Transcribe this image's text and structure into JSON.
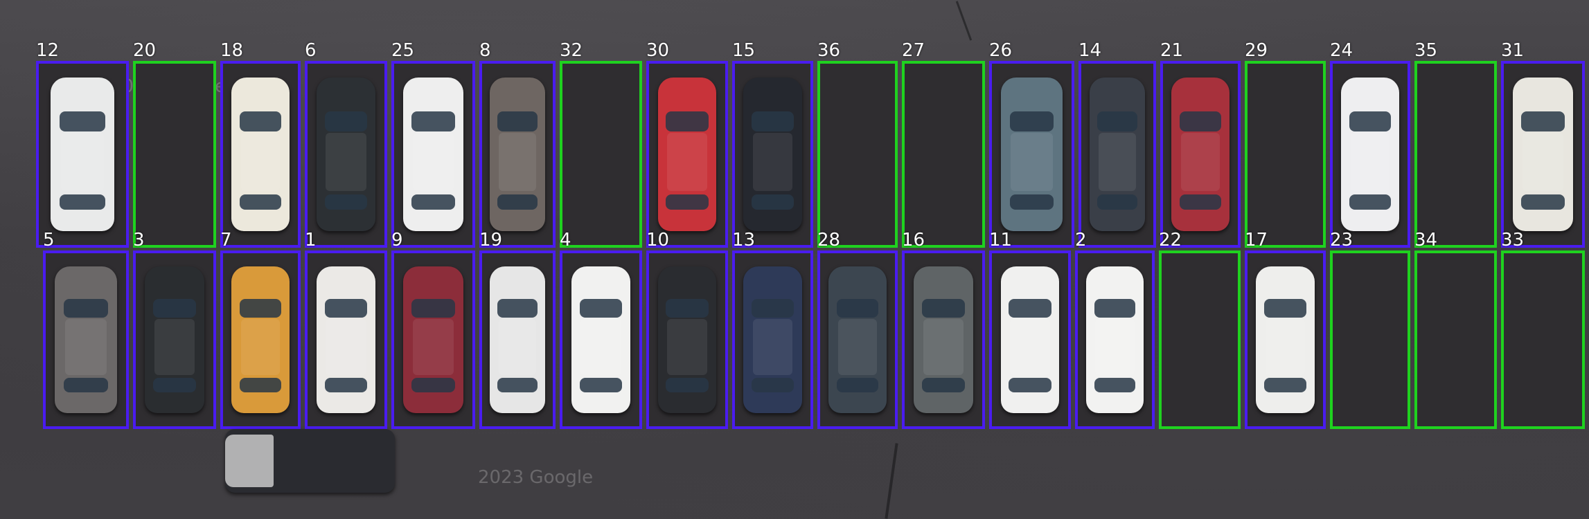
{
  "scene": {
    "description_free": true,
    "watermark_text": "2023 Google",
    "colors": {
      "occupied_box": "#4a1cf0",
      "free_box": "#1fd21f",
      "label": "#ffffff"
    }
  },
  "top_row": [
    {
      "id": "12",
      "status": "occupied",
      "car_color": "#e9eaea"
    },
    {
      "id": "20",
      "status": "free"
    },
    {
      "id": "18",
      "status": "occupied",
      "car_color": "#ece8dc"
    },
    {
      "id": "6",
      "status": "occupied",
      "car_color": "#2c3034"
    },
    {
      "id": "25",
      "status": "occupied",
      "car_color": "#eeeeee"
    },
    {
      "id": "8",
      "status": "occupied",
      "car_color": "#6e6662"
    },
    {
      "id": "32",
      "status": "free"
    },
    {
      "id": "30",
      "status": "occupied",
      "car_color": "#c8333a"
    },
    {
      "id": "15",
      "status": "occupied",
      "car_color": "#25282f"
    },
    {
      "id": "36",
      "status": "free"
    },
    {
      "id": "27",
      "status": "free"
    },
    {
      "id": "26",
      "status": "occupied",
      "car_color": "#5e7480"
    },
    {
      "id": "14",
      "status": "occupied",
      "car_color": "#3a3f48"
    },
    {
      "id": "21",
      "status": "occupied",
      "car_color": "#a7313c"
    },
    {
      "id": "29",
      "status": "free"
    },
    {
      "id": "24",
      "status": "occupied",
      "car_color": "#eeeef0"
    },
    {
      "id": "35",
      "status": "free"
    },
    {
      "id": "31",
      "status": "occupied",
      "car_color": "#e8e6df"
    }
  ],
  "bottom_row": [
    {
      "id": "5",
      "status": "occupied",
      "car_color": "#6b6868"
    },
    {
      "id": "3",
      "status": "occupied",
      "car_color": "#2a2d30"
    },
    {
      "id": "7",
      "status": "occupied",
      "car_color": "#d99a3a"
    },
    {
      "id": "1",
      "status": "occupied",
      "car_color": "#ebe9e6"
    },
    {
      "id": "9",
      "status": "occupied",
      "car_color": "#8c2d3a"
    },
    {
      "id": "19",
      "status": "occupied",
      "car_color": "#e6e6e6"
    },
    {
      "id": "4",
      "status": "occupied",
      "car_color": "#f1f1f0"
    },
    {
      "id": "10",
      "status": "occupied",
      "car_color": "#2a2c30"
    },
    {
      "id": "13",
      "status": "occupied",
      "car_color": "#2e3a58"
    },
    {
      "id": "28",
      "status": "occupied",
      "car_color": "#3c4650"
    },
    {
      "id": "16",
      "status": "occupied",
      "car_color": "#5f6466"
    },
    {
      "id": "11",
      "status": "occupied",
      "car_color": "#f0f0ef"
    },
    {
      "id": "2",
      "status": "occupied",
      "car_color": "#f2f2f1"
    },
    {
      "id": "22",
      "status": "free"
    },
    {
      "id": "17",
      "status": "occupied",
      "car_color": "#eeeeec"
    },
    {
      "id": "23",
      "status": "free"
    },
    {
      "id": "34",
      "status": "free"
    },
    {
      "id": "33",
      "status": "free"
    }
  ],
  "moving_vehicle": {
    "color": "#2a2b30",
    "cab_color": "#c9c9c9"
  }
}
